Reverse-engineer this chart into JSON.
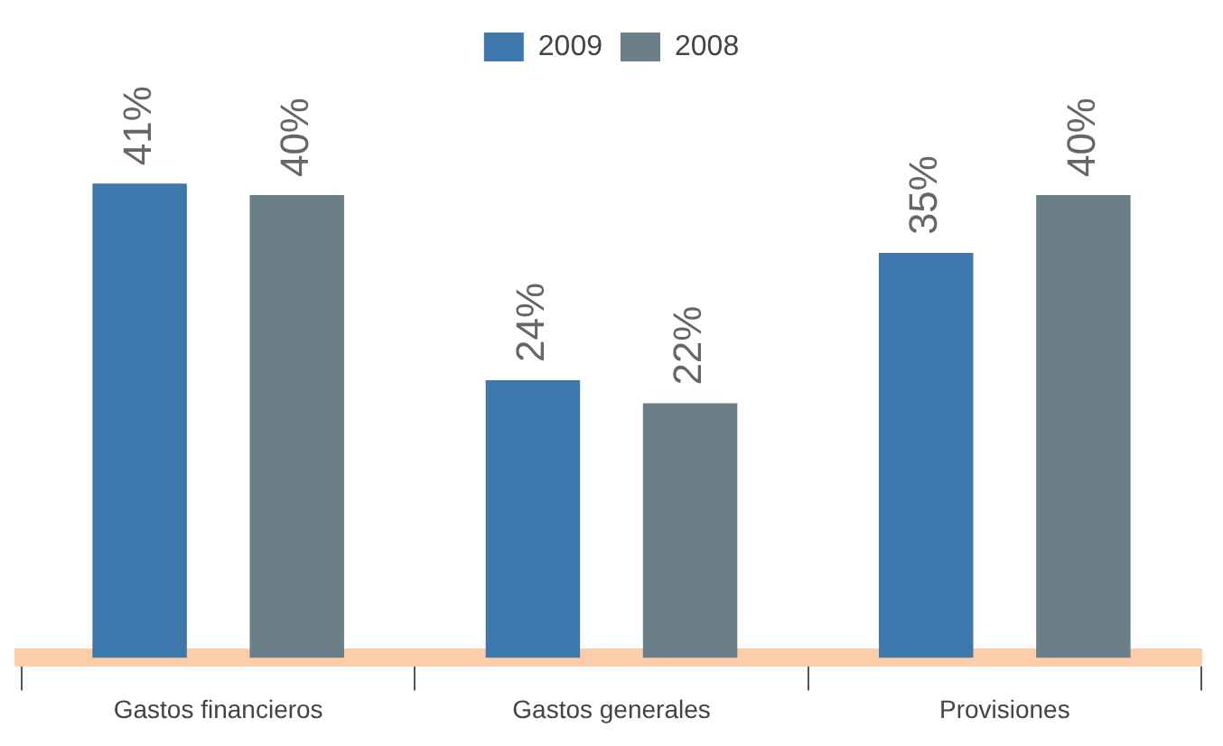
{
  "chart_data": {
    "type": "bar",
    "categories": [
      "Gastos financieros",
      "Gastos generales",
      "Provisiones"
    ],
    "series": [
      {
        "name": "2009",
        "color": "#3d77ab",
        "values": [
          41,
          24,
          35
        ],
        "value_labels": [
          "41%",
          "24%",
          "35%"
        ]
      },
      {
        "name": "2008",
        "color": "#6a7f87",
        "values": [
          40,
          22,
          40
        ],
        "value_labels": [
          "40%",
          "22%",
          "40%"
        ]
      }
    ],
    "legend": "top",
    "grid": false
  }
}
